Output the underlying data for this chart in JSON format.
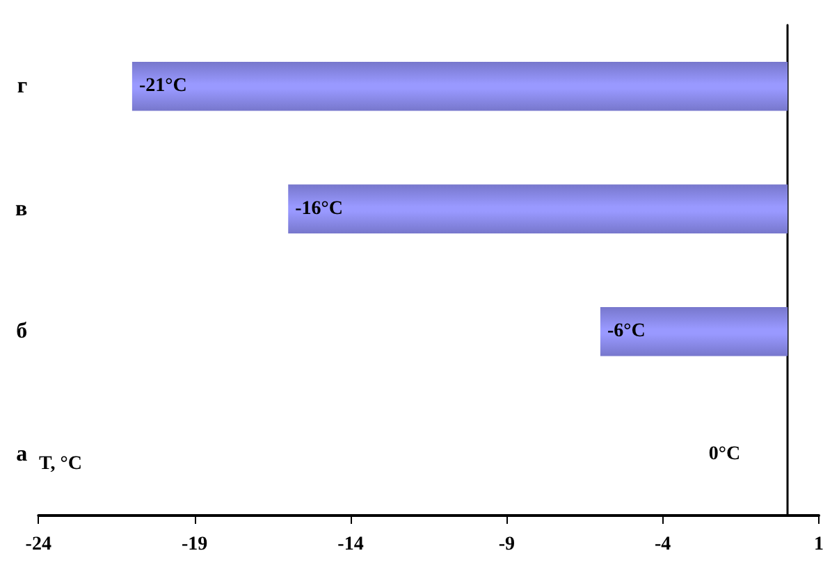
{
  "chart_data": {
    "type": "bar",
    "orientation": "horizontal",
    "xlabel": "T, °C",
    "categories": [
      "г",
      "в",
      "б",
      "а"
    ],
    "values": [
      -21,
      -16,
      -6,
      0
    ],
    "value_labels": [
      "-21°C",
      "-16°C",
      "-6°C",
      "0°C"
    ],
    "color": "#9999ff",
    "xlim": [
      -24,
      1
    ],
    "xticks": [
      -24,
      -19,
      -14,
      -9,
      -4,
      1
    ],
    "grid": false
  }
}
